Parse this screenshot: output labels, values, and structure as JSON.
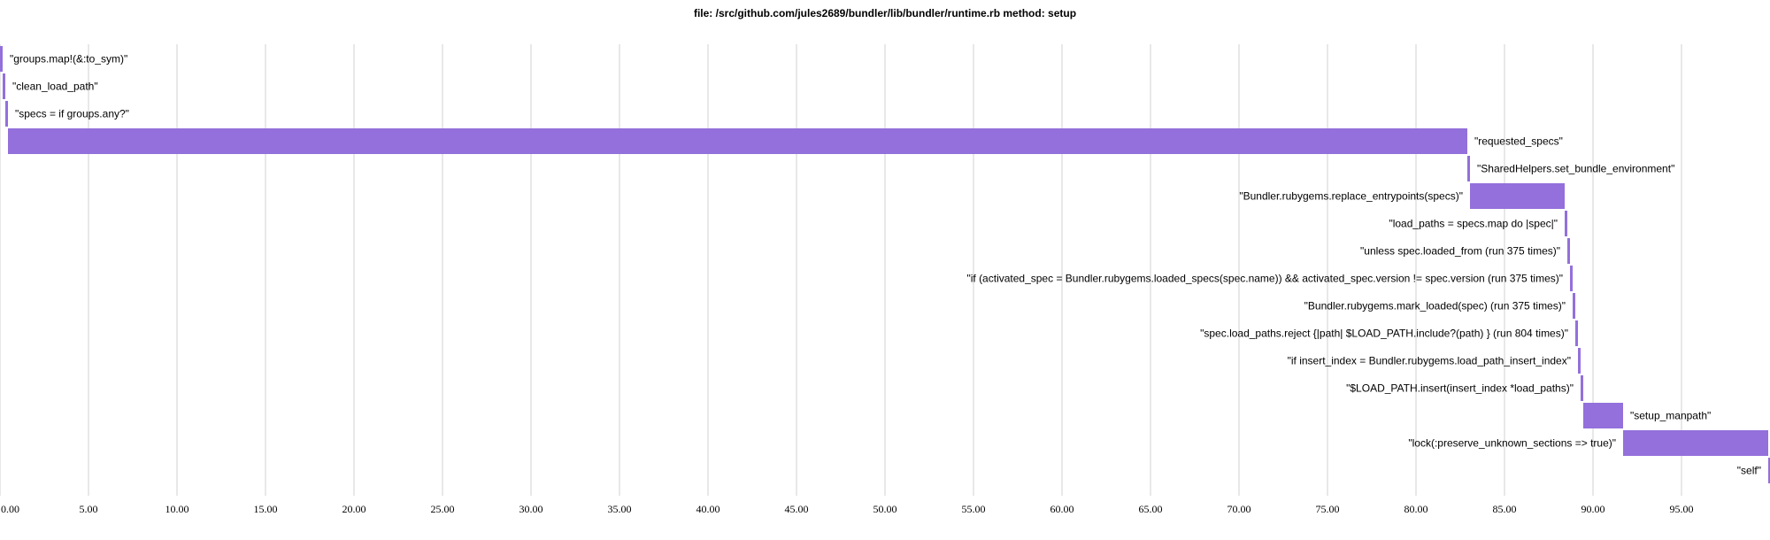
{
  "chart_data": {
    "type": "bar",
    "orientation": "waterfall",
    "title": "file: /src/github.com/jules2689/bundler/lib/bundler/runtime.rb method: setup",
    "xlabel": "",
    "ylabel": "",
    "xlim": [
      0,
      100
    ],
    "grid": true,
    "bar_color": "#9370db",
    "x_ticks": [
      "0.00",
      "5.00",
      "10.00",
      "15.00",
      "20.00",
      "25.00",
      "30.00",
      "35.00",
      "40.00",
      "45.00",
      "50.00",
      "55.00",
      "60.00",
      "65.00",
      "70.00",
      "75.00",
      "80.00",
      "85.00",
      "90.00",
      "95.00"
    ],
    "bars": [
      {
        "label": "\"groups.map!(&:to_sym)\"",
        "start": 0.0,
        "value": 0.15
      },
      {
        "label": "\"clean_load_path\"",
        "start": 0.15,
        "value": 0.15
      },
      {
        "label": "\"specs = if groups.any?\"",
        "start": 0.3,
        "value": 0.15
      },
      {
        "label": "\"requested_specs\"",
        "start": 0.45,
        "value": 82.45
      },
      {
        "label": "\"SharedHelpers.set_bundle_environment\"",
        "start": 82.9,
        "value": 0.15
      },
      {
        "label": "\"Bundler.rubygems.replace_entrypoints(specs)\"",
        "start": 83.05,
        "value": 5.35
      },
      {
        "label": "\"load_paths = specs.map do |spec|\"",
        "start": 88.4,
        "value": 0.15
      },
      {
        "label": "\"unless spec.loaded_from (run 375 times)\"",
        "start": 88.55,
        "value": 0.15
      },
      {
        "label": "\"if (activated_spec = Bundler.rubygems.loaded_specs(spec.name)) && activated_spec.version != spec.version (run 375 times)\"",
        "start": 88.7,
        "value": 0.15
      },
      {
        "label": "\"Bundler.rubygems.mark_loaded(spec) (run 375 times)\"",
        "start": 88.85,
        "value": 0.15
      },
      {
        "label": "\"spec.load_paths.reject {|path| $LOAD_PATH.include?(path) } (run 804 times)\"",
        "start": 89.0,
        "value": 0.15
      },
      {
        "label": "\"if insert_index = Bundler.rubygems.load_path_insert_index\"",
        "start": 89.15,
        "value": 0.15
      },
      {
        "label": "\"$LOAD_PATH.insert(insert_index *load_paths)\"",
        "start": 89.3,
        "value": 0.15
      },
      {
        "label": "\"setup_manpath\"",
        "start": 89.45,
        "value": 2.25
      },
      {
        "label": "\"lock(:preserve_unknown_sections => true)\"",
        "start": 91.7,
        "value": 8.2
      },
      {
        "label": "\"self\"",
        "start": 99.9,
        "value": 0.1
      }
    ]
  }
}
